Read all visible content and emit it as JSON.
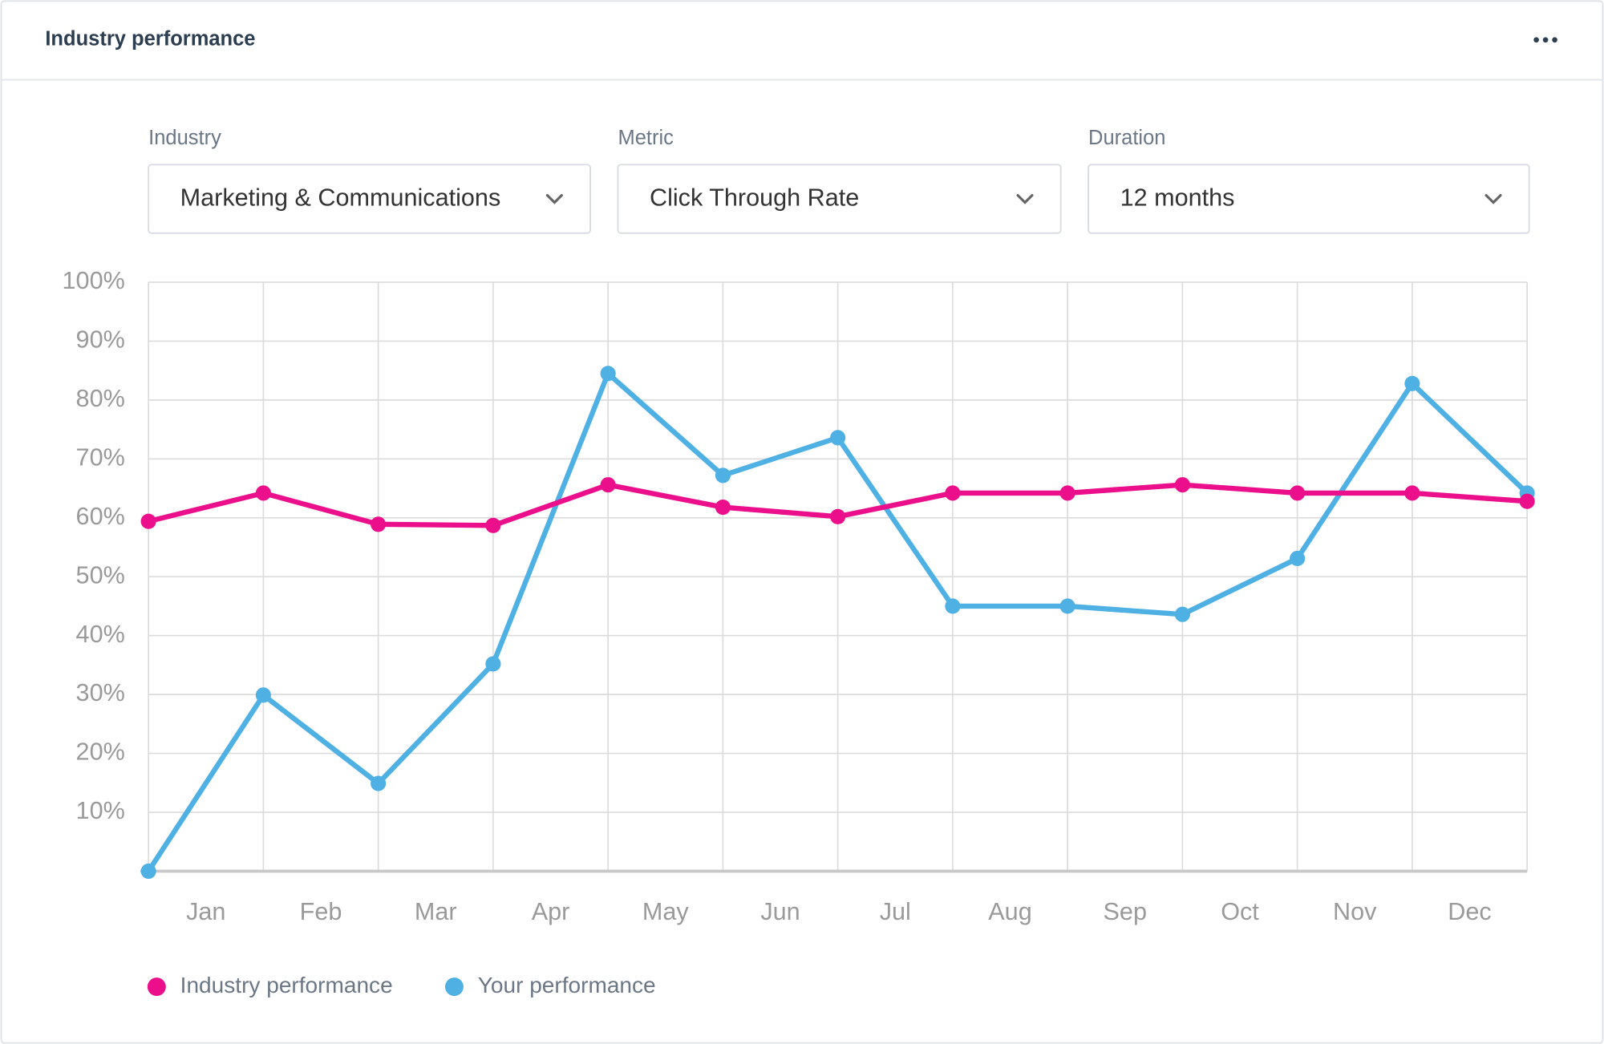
{
  "header": {
    "title": "Industry performance"
  },
  "filters": [
    {
      "label": "Industry",
      "value": "Marketing & Communications"
    },
    {
      "label": "Metric",
      "value": "Click Through Rate"
    },
    {
      "label": "Duration",
      "value": "12 months"
    }
  ],
  "chart_data": {
    "type": "line",
    "month_labels": [
      "Jan",
      "Feb",
      "Mar",
      "Apr",
      "May",
      "Jun",
      "Jul",
      "Aug",
      "Sep",
      "Oct",
      "Nov",
      "Dec"
    ],
    "series": [
      {
        "name": "Industry performance",
        "color": "#ec0f8c",
        "values": [
          59.4,
          64.2,
          58.9,
          58.7,
          65.6,
          61.8,
          60.2,
          64.2,
          64.2,
          65.6,
          64.2,
          64.2,
          62.8
        ]
      },
      {
        "name": "Your performance",
        "color": "#4fb0e4",
        "values": [
          0,
          29.9,
          14.9,
          35.2,
          84.5,
          67.2,
          73.6,
          45,
          45,
          43.6,
          53.1,
          82.8,
          64.2
        ]
      }
    ],
    "ylim": [
      0,
      100
    ],
    "yticks": [
      {
        "value": 10,
        "label": "10%"
      },
      {
        "value": 20,
        "label": "20%"
      },
      {
        "value": 30,
        "label": "30%"
      },
      {
        "value": 40,
        "label": "40%"
      },
      {
        "value": 50,
        "label": "50%"
      },
      {
        "value": 60,
        "label": "60%"
      },
      {
        "value": 70,
        "label": "70%"
      },
      {
        "value": 80,
        "label": "80%"
      },
      {
        "value": 90,
        "label": "90%"
      },
      {
        "value": 100,
        "label": "100%"
      }
    ],
    "grid": true
  }
}
